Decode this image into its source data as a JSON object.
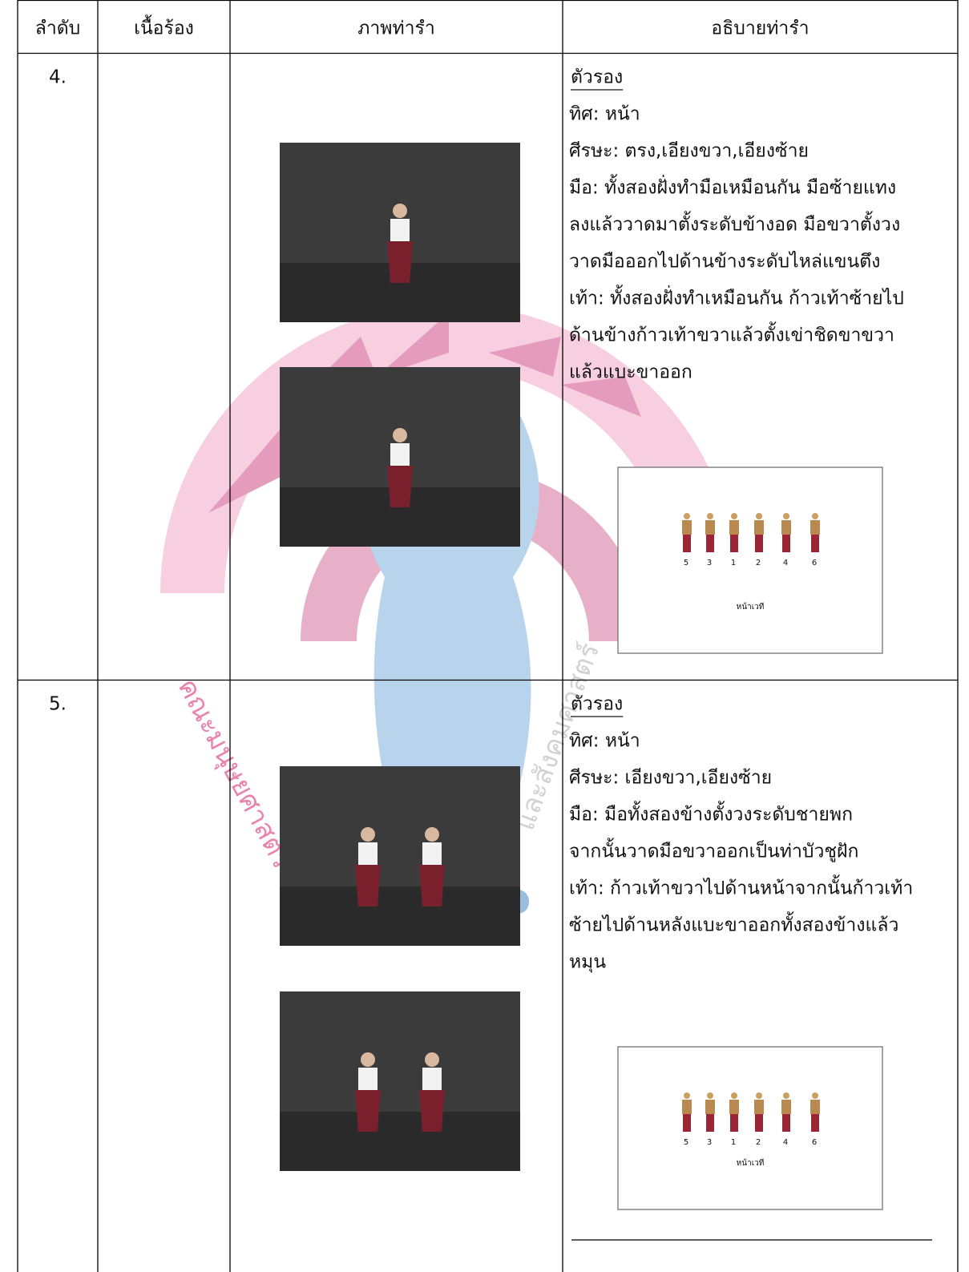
{
  "table": {
    "header": [
      "ลำดับ",
      "เนื้อร้อง",
      "ภาพท่ารำ",
      "อธิบายท่ารำ"
    ],
    "rows": [
      {
        "number": "4.",
        "heading": "ตัวรอง",
        "lines": [
          "ทิศ:  หน้า",
          "ศีรษะ: ตรง,เอียงขวา,เอียงซ้าย",
          "มือ: ทั้งสองฝั่งทำมือเหมือนกัน มือซ้ายแทง",
          "ลงแล้ววาดมาตั้งระดับข้างอด มือขวาตั้งวง",
          "วาดมือออกไปด้านข้างระดับไหล่แขนตึง",
          "เท้า: ทั้งสองฝั่งทำเหมือนกัน ก้าวเท้าซ้ายไป",
          "ด้านข้างก้าวเท้าขวาแล้วตั้งเข่าชิดขาขวา",
          "แล้วแบะขาออก"
        ],
        "diagram": {
          "positions": [
            "5",
            "3",
            "1",
            "2",
            "4",
            "6"
          ],
          "stage": "หน้าเวที"
        }
      },
      {
        "number": "5.",
        "heading": "ตัวรอง",
        "lines": [
          "ทิศ:  หน้า",
          "ศีรษะ: เอียงขวา,เอียงซ้าย",
          "มือ: มือทั้งสองข้างตั้งวงระดับชายพก",
          "จากนั้นวาดมือขวาออกเป็นท่าบัวชูฝัก",
          "เท้า: ก้าวเท้าขวาไปด้านหน้าจากนั้นก้าวเท้า",
          "ซ้ายไปด้านหลังแบะขาออกทั้งสองข้างแล้ว",
          "หมุน"
        ],
        "diagram": {
          "positions": [
            "5",
            "3",
            "1",
            "2",
            "4",
            "6"
          ],
          "stage": "หน้าเวที"
        }
      }
    ]
  },
  "watermark": [
    "คณะมนุษยศาสตร์",
    "และสังคมศาสตร์"
  ]
}
